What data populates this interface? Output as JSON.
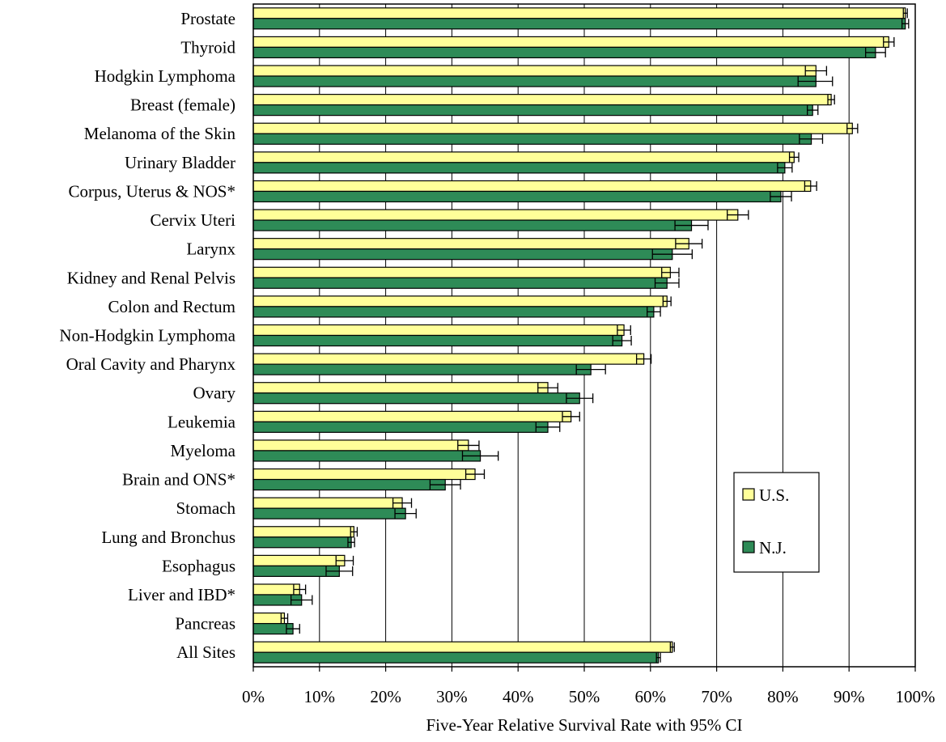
{
  "chart_data": {
    "type": "bar",
    "orientation": "horizontal",
    "xlabel": "Five-Year Relative Survival Rate with 95% CI",
    "xlim": [
      0,
      100
    ],
    "x_ticks": [
      "0%",
      "10%",
      "20%",
      "30%",
      "40%",
      "50%",
      "60%",
      "70%",
      "80%",
      "90%",
      "100%"
    ],
    "grid": "vertical",
    "legend_position": "right",
    "categories": [
      "Prostate",
      "Thyroid",
      "Hodgkin Lymphoma",
      "Breast (female)",
      "Melanoma of the Skin",
      "Urinary Bladder",
      "Corpus, Uterus & NOS*",
      "Cervix Uteri",
      "Larynx",
      "Kidney and Renal Pelvis",
      "Colon and Rectum",
      "Non-Hodgkin Lymphoma",
      "Oral Cavity and Pharynx",
      "Ovary",
      "Leukemia",
      "Myeloma",
      "Brain and ONS*",
      "Stomach",
      "Lung and Bronchus",
      "Esophagus",
      "Liver and IBD*",
      "Pancreas",
      "All Sites"
    ],
    "series": [
      {
        "name": "U.S.",
        "color": "#ffff99",
        "values": [
          98.5,
          96.0,
          85.0,
          87.3,
          90.5,
          81.7,
          84.2,
          73.2,
          65.8,
          63.0,
          62.5,
          56.0,
          59.0,
          44.5,
          48.0,
          32.5,
          33.5,
          22.5,
          15.2,
          13.8,
          7.0,
          4.7,
          63.3
        ],
        "ci_low": [
          98.2,
          95.2,
          83.4,
          86.8,
          89.7,
          81.0,
          83.3,
          71.6,
          63.8,
          61.7,
          61.9,
          55.0,
          57.9,
          43.0,
          46.7,
          30.9,
          32.1,
          21.1,
          14.7,
          12.5,
          6.1,
          4.2,
          63.0
        ],
        "ci_high": [
          98.8,
          96.8,
          86.6,
          87.8,
          91.3,
          82.4,
          85.1,
          74.8,
          67.8,
          64.3,
          63.1,
          57.0,
          60.1,
          46.0,
          49.3,
          34.1,
          34.9,
          23.9,
          15.7,
          15.1,
          7.9,
          5.2,
          63.6
        ]
      },
      {
        "name": "N.J.",
        "color": "#2e8b57",
        "values": [
          98.5,
          94.0,
          85.0,
          84.5,
          84.3,
          80.3,
          79.7,
          66.2,
          63.3,
          62.5,
          60.5,
          55.7,
          51.0,
          49.3,
          44.5,
          34.3,
          29.0,
          23.0,
          14.8,
          13.0,
          7.3,
          6.0,
          61.2
        ],
        "ci_low": [
          98.0,
          92.5,
          82.3,
          83.7,
          82.5,
          79.2,
          78.1,
          63.7,
          60.3,
          60.7,
          59.5,
          54.3,
          48.8,
          47.3,
          42.7,
          31.6,
          26.7,
          21.4,
          14.3,
          11.0,
          5.7,
          5.0,
          60.9
        ],
        "ci_high": [
          99.0,
          95.5,
          87.5,
          85.3,
          86.0,
          81.4,
          81.3,
          68.7,
          66.3,
          64.3,
          61.5,
          57.1,
          53.2,
          51.3,
          46.3,
          37.0,
          31.3,
          24.6,
          15.3,
          15.0,
          8.9,
          7.0,
          61.5
        ]
      }
    ]
  }
}
